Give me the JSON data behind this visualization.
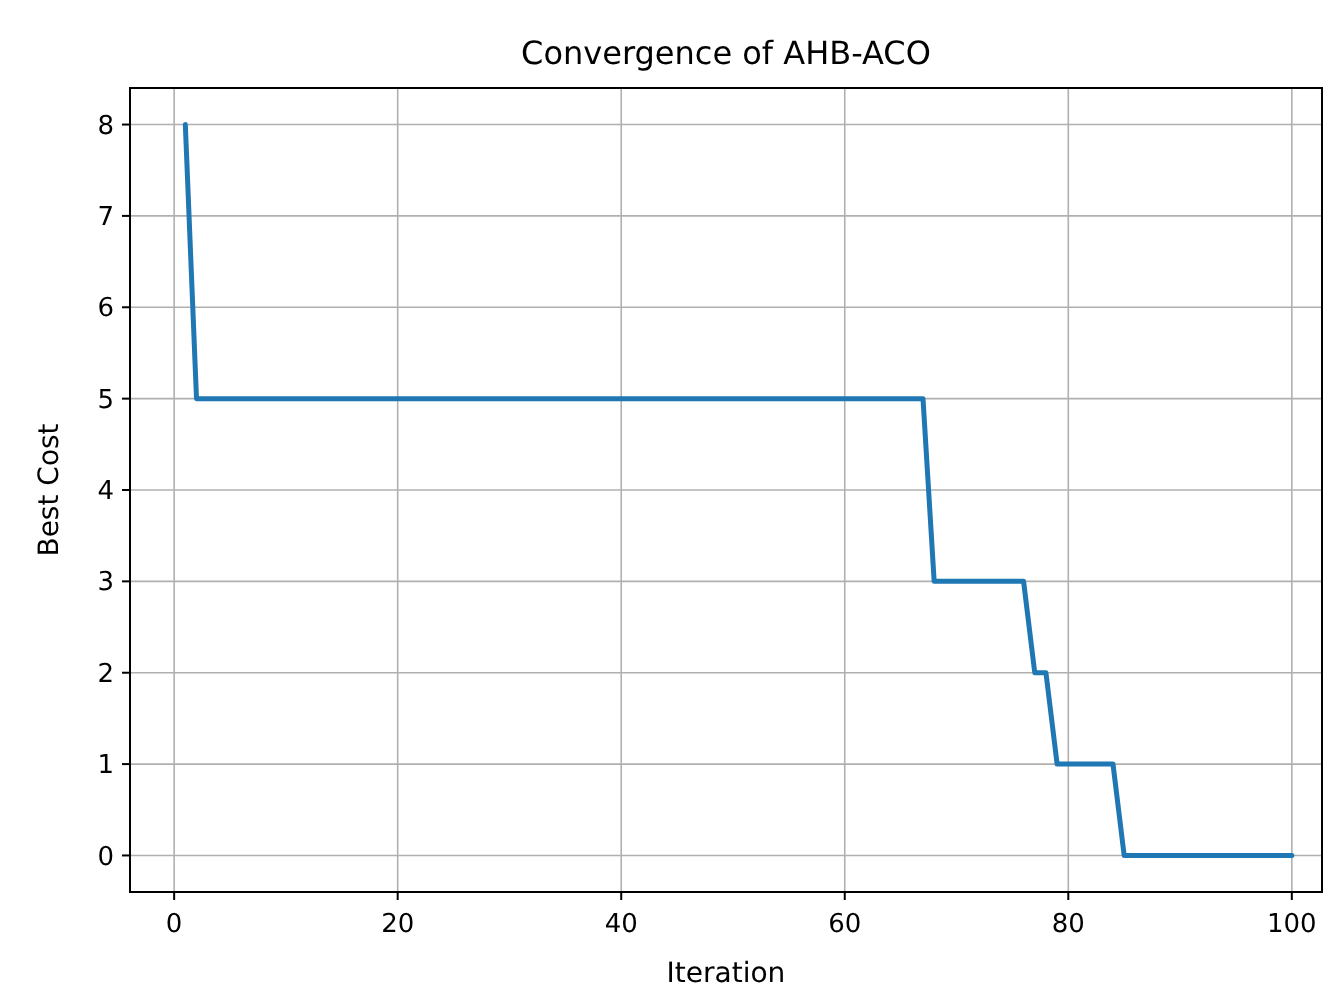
{
  "chart_data": {
    "type": "line",
    "title": "Convergence of AHB-ACO",
    "xlabel": "Iteration",
    "ylabel": "Best Cost",
    "x": [
      1,
      2,
      67,
      68,
      76,
      77,
      78,
      79,
      84,
      85,
      100
    ],
    "series": [
      {
        "color": "#1f77b4",
        "values": [
          8,
          5,
          5,
          3,
          3,
          2,
          2,
          1,
          1,
          0,
          0
        ]
      }
    ],
    "xlim": [
      -3.95,
      102.7
    ],
    "xticks": [
      0,
      20,
      40,
      60,
      80,
      100
    ],
    "ylim": [
      -0.4,
      8.4
    ],
    "yticks": [
      0,
      1,
      2,
      3,
      4,
      5,
      6,
      7,
      8
    ],
    "grid": true,
    "marker": "none",
    "line_style": "solid"
  }
}
